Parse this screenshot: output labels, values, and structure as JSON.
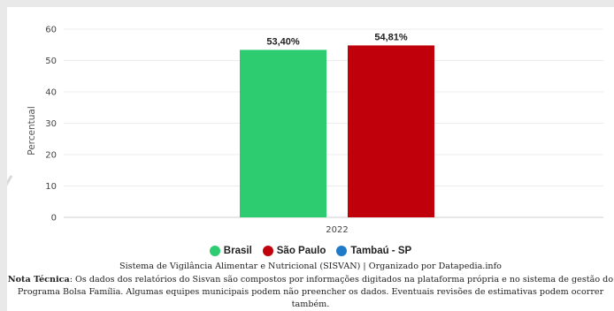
{
  "chart_data": {
    "type": "bar",
    "categories": [
      "2022"
    ],
    "series": [
      {
        "name": "Brasil",
        "values": [
          53.4
        ],
        "label": "53,40%",
        "color": "#2ecc71"
      },
      {
        "name": "São Paulo",
        "values": [
          54.81
        ],
        "label": "54,81%",
        "color": "#c0000a"
      },
      {
        "name": "Tambaú - SP",
        "values": [
          null
        ],
        "label": "",
        "color": "#1f7ac9"
      }
    ],
    "ylabel": "Percentual",
    "ylim": [
      0,
      60
    ],
    "yticks": [
      "0",
      "10",
      "20",
      "30",
      "40",
      "50",
      "60"
    ],
    "grid": true,
    "legend": "bottom"
  },
  "footer": {
    "source": "Sistema de Vigilância Alimentar e Nutricional (SISVAN) | Organizado por Datapedia.info",
    "note_label": "Nota Técnica",
    "note_line1": ": Os dados dos relatórios do Sisvan são compostos por informações digitados na plataforma própria e no sistema de gestão do",
    "note_line2": "Programa Bolsa Família. Algumas equipes municipais podem não preencher os dados. Eventuais revisões de estimativas podem ocorrer",
    "note_line3": "também."
  }
}
